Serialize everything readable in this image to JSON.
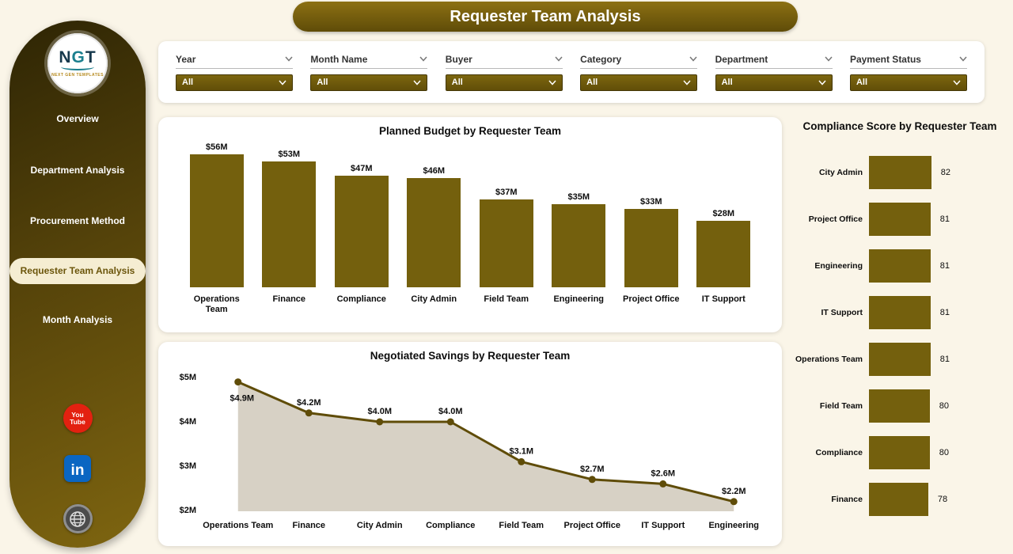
{
  "app": {
    "title": "Requester Team Analysis"
  },
  "sidebar": {
    "logo": {
      "text_n": "N",
      "text_g": "G",
      "text_t": "T",
      "subtext": "NEXT GEN TEMPLATES"
    },
    "items": [
      {
        "label": "Overview",
        "active": false
      },
      {
        "label": "Department Analysis",
        "active": false
      },
      {
        "label": "Procurement Method",
        "active": false
      },
      {
        "label": "Requester Team Analysis",
        "active": true
      },
      {
        "label": "Month Analysis",
        "active": false
      }
    ],
    "social": [
      {
        "icon": "youtube-icon",
        "line1": "You",
        "line2": "Tube"
      },
      {
        "icon": "linkedin-icon",
        "label": "in"
      },
      {
        "icon": "website-icon"
      }
    ]
  },
  "filters": [
    {
      "label": "Year",
      "value": "All"
    },
    {
      "label": "Month Name",
      "value": "All"
    },
    {
      "label": "Buyer",
      "value": "All"
    },
    {
      "label": "Category",
      "value": "All"
    },
    {
      "label": "Department",
      "value": "All"
    },
    {
      "label": "Payment Status",
      "value": "All"
    }
  ],
  "chart_data": [
    {
      "type": "bar",
      "title": "Planned Budget by Requester Team",
      "categories": [
        "Operations Team",
        "Finance",
        "Compliance",
        "City Admin",
        "Field Team",
        "Engineering",
        "Project Office",
        "IT Support"
      ],
      "values": [
        56,
        53,
        47,
        46,
        37,
        35,
        33,
        28
      ],
      "labels": [
        "$56M",
        "$53M",
        "$47M",
        "$46M",
        "$37M",
        "$35M",
        "$33M",
        "$28M"
      ],
      "ylabel": "",
      "xlabel": "",
      "ylim": [
        0,
        60
      ],
      "grid": false,
      "legend": "none"
    },
    {
      "type": "area",
      "title": "Negotiated Savings by Requester Team",
      "categories": [
        "Operations Team",
        "Finance",
        "City Admin",
        "Compliance",
        "Field Team",
        "Project Office",
        "IT Support",
        "Engineering"
      ],
      "values": [
        4.9,
        4.2,
        4.0,
        4.0,
        3.1,
        2.7,
        2.6,
        2.2
      ],
      "labels": [
        "$4.9M",
        "$4.2M",
        "$4.0M",
        "$4.0M",
        "$3.1M",
        "$2.7M",
        "$2.6M",
        "$2.2M"
      ],
      "y_ticks": [
        {
          "label": "$5M",
          "value": 5
        },
        {
          "label": "$4M",
          "value": 4
        },
        {
          "label": "$3M",
          "value": 3
        },
        {
          "label": "$2M",
          "value": 2
        }
      ],
      "ylim": [
        2,
        5
      ],
      "grid": false,
      "legend": "none"
    },
    {
      "type": "bar",
      "orientation": "horizontal",
      "title": "Compliance Score by Requester Team",
      "categories": [
        "City Admin",
        "Project Office",
        "Engineering",
        "IT Support",
        "Operations Team",
        "Field Team",
        "Compliance",
        "Finance"
      ],
      "values": [
        82,
        81,
        81,
        81,
        81,
        80,
        80,
        78
      ],
      "xlim": [
        0,
        90
      ],
      "grid": false,
      "legend": "none"
    }
  ],
  "colors": {
    "accent_olive": "#74600d",
    "line_dark_olive": "#5f4c08",
    "area_fill": "#d7d1c5",
    "page_bg": "#faf5e8",
    "active_pill_bg": "#f5edd2",
    "youtube_red": "#e32110",
    "linkedin_blue": "#0a66c2",
    "text_dark": "#0d0d0d"
  }
}
